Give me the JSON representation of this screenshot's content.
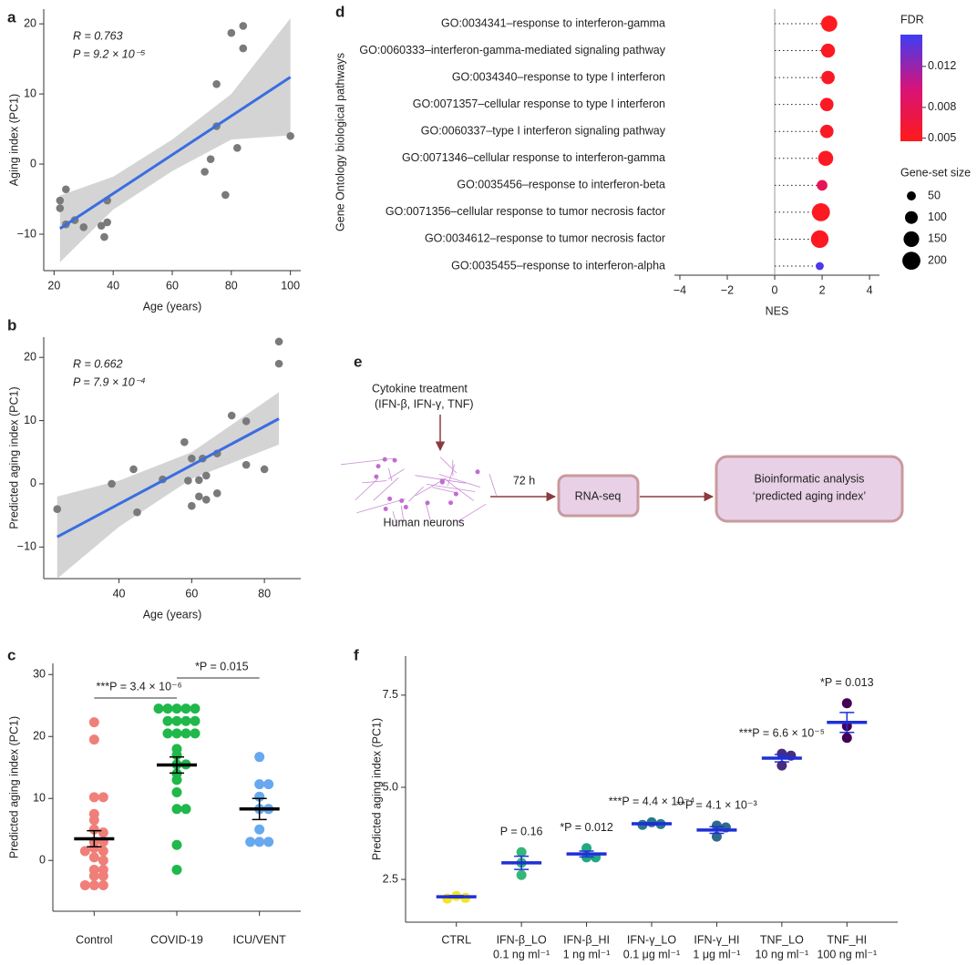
{
  "chart_data": [
    {
      "type": "scatter",
      "panel_label": "a",
      "xlabel": "Age (years)",
      "ylabel": "Aging index (PC1)",
      "annotations": [
        "R = 0.763",
        "P = 9.2 × 10⁻⁵"
      ],
      "x": [
        22,
        22,
        24,
        24,
        27,
        30,
        36,
        37,
        38,
        38,
        71,
        73,
        75,
        75,
        78,
        80,
        82,
        84,
        84,
        100
      ],
      "values": [
        -5.2,
        -6.3,
        -3.6,
        -8.6,
        -8,
        -9,
        -8.8,
        -10.4,
        -8.3,
        -5.2,
        -1.1,
        0.7,
        11.4,
        5.4,
        -4.4,
        18.7,
        2.3,
        19.7,
        16.5,
        4
      ],
      "color": "#7a7a7a",
      "fit_color": "#3a6de0",
      "band_color": "#d4d4d4",
      "fit": {
        "x": [
          22,
          100
        ],
        "y": [
          -9.2,
          12.4
        ]
      },
      "band": {
        "x": [
          22,
          40,
          60,
          80,
          100
        ],
        "lower": [
          -14,
          -6.5,
          -1,
          3.5,
          4.1
        ],
        "upper": [
          -4.5,
          -1.8,
          3.5,
          10,
          20.8
        ]
      },
      "xlim": [
        16.5,
        103.5
      ],
      "ylim": [
        -15.2,
        22.1
      ],
      "xticks": [
        20,
        40,
        60,
        80,
        100
      ],
      "yticks": [
        {
          "value": -10,
          "label": "−10"
        },
        0,
        10,
        20
      ]
    },
    {
      "type": "scatter",
      "panel_label": "b",
      "xlabel": "Age (years)",
      "ylabel": "Predicted aging index (PC1)",
      "annotations": [
        "R = 0.662",
        "P = 7.9 × 10⁻⁴"
      ],
      "x": [
        23,
        38,
        44,
        45,
        52,
        58,
        59,
        60,
        60,
        62,
        62,
        63,
        64,
        64,
        67,
        67,
        71,
        75,
        75,
        80,
        84,
        84
      ],
      "values": [
        -4,
        0,
        2.3,
        -4.5,
        0.7,
        6.6,
        0.5,
        4,
        -3.5,
        0.6,
        -2,
        4,
        -2.5,
        1.3,
        4.8,
        -1.5,
        10.8,
        9.9,
        3,
        2.3,
        22.5,
        19
      ],
      "color": "#7a7a7a",
      "fit_color": "#3a6de0",
      "band_color": "#d4d4d4",
      "fit": {
        "x": [
          23,
          84
        ],
        "y": [
          -8.4,
          10.3
        ]
      },
      "band": {
        "x": [
          23,
          40,
          60,
          84
        ],
        "lower": [
          -15,
          -6.8,
          0.8,
          6.2
        ],
        "upper": [
          -2,
          0.5,
          5,
          14.5
        ]
      },
      "xlim": [
        19.3,
        90
      ],
      "ylim": [
        -15,
        23.2
      ],
      "xticks": [
        40,
        60,
        80
      ],
      "yticks": [
        {
          "value": -10,
          "label": "−10"
        },
        0,
        10,
        20
      ]
    },
    {
      "type": "strip",
      "panel_label": "c",
      "ylabel": "Predicted aging index (PC1)",
      "categories": [
        "Control",
        "COVID-19",
        "ICU/VENT"
      ],
      "colors": [
        "#f07f7a",
        "#1fb84a",
        "#67a8ee"
      ],
      "points": [
        [
          22.3,
          19.5,
          10.2,
          10.2,
          7.5,
          6.5,
          5,
          4.5,
          3,
          3,
          2,
          1.5,
          1.5,
          0.5,
          0,
          -1.5,
          -1.5,
          -2.5,
          -2.5,
          -4,
          -4,
          -4
        ],
        [
          24.5,
          24.5,
          24.5,
          24.5,
          24.5,
          22.5,
          22.5,
          22.5,
          22.5,
          20.5,
          20.5,
          20.5,
          20.5,
          18,
          17,
          15.5,
          15.5,
          14,
          13,
          11,
          8.3,
          8.3,
          2.5,
          -1.5
        ],
        [
          16.7,
          12.3,
          12.3,
          10.3,
          8.3,
          8.3,
          5,
          3,
          3,
          3
        ]
      ],
      "means": [
        3.5,
        15.4,
        8.3
      ],
      "errors": [
        1.3,
        1.3,
        1.7
      ],
      "mean_color": "#000000",
      "annotations": [
        "***P = 3.4 × 10⁻⁶",
        "*P = 0.015"
      ],
      "ylim": [
        -8.2,
        31.8
      ],
      "yticks": [
        0,
        10,
        20,
        30
      ]
    },
    {
      "type": "dot",
      "panel_label": "d",
      "xlabel": "NES",
      "ylabel": "Gene Ontology biological pathways",
      "categories": [
        "GO:0034341–response to interferon-gamma",
        "GO:0060333–interferon-gamma-mediated signaling pathway",
        "GO:0034340–response to type I interferon",
        "GO:0071357–cellular response to type I interferon",
        "GO:0060337–type I interferon signaling pathway",
        "GO:0071346–cellular response to interferon-gamma",
        "GO:0035456–response to interferon-beta",
        "GO:0071356–cellular response to tumor necrosis factor",
        "GO:0034612–response to tumor necrosis factor",
        "GO:0035455–response to interferon-alpha"
      ],
      "values": [
        2.3,
        2.25,
        2.25,
        2.2,
        2.2,
        2.15,
        2.0,
        1.95,
        1.9,
        1.9
      ],
      "fdr": [
        0.005,
        0.0052,
        0.0053,
        0.0053,
        0.0054,
        0.0052,
        0.008,
        0.0051,
        0.0051,
        0.0145
      ],
      "size": [
        160,
        120,
        110,
        110,
        110,
        140,
        70,
        200,
        190,
        40
      ],
      "xlim": [
        -4.23,
        4.42
      ],
      "xticks": [
        {
          "value": -4,
          "label": "−4"
        },
        {
          "value": -2,
          "label": "−2"
        },
        0,
        2,
        4
      ],
      "color_title": "FDR",
      "colormap": [
        "#ff1a1a",
        "#d6137a",
        "#3d3df5"
      ],
      "clim": [
        0.0047,
        0.0151
      ],
      "cticks": [
        0.005,
        0.008,
        0.012
      ],
      "size_title": "Gene-set size",
      "size_legend": [
        50,
        100,
        150,
        200
      ]
    },
    {
      "type": "strip",
      "panel_label": "f",
      "ylabel": "Predicted aging index (PC1)",
      "categories": [
        "CTRL",
        "IFN-β_LO",
        "IFN-β_HI",
        "IFN-γ_LO",
        "IFN-γ_HI",
        "TNF_LO",
        "TNF_HI"
      ],
      "doses": [
        null,
        "0.1 ng ml⁻¹",
        "1 ng ml⁻¹",
        "0.1 μg ml⁻¹",
        "1 μg ml⁻¹",
        "10 ng ml⁻¹",
        "100 ng ml⁻¹"
      ],
      "colors": [
        "#f2e51d",
        "#35b779",
        "#22a884",
        "#2a788e",
        "#31688e",
        "#472d7b",
        "#440154"
      ],
      "points": [
        [
          2.05,
          2.0,
          1.98
        ],
        [
          3.24,
          2.95,
          2.62
        ],
        [
          3.35,
          3.1,
          3.1
        ],
        [
          4.05,
          4.0,
          3.98
        ],
        [
          3.96,
          3.91,
          3.66
        ],
        [
          5.91,
          5.86,
          5.59
        ],
        [
          7.28,
          6.66,
          6.34
        ]
      ],
      "means": [
        2.03,
        2.95,
        3.19,
        4.01,
        3.84,
        5.79,
        6.76
      ],
      "errors": [
        0.03,
        0.18,
        0.08,
        0.03,
        0.09,
        0.1,
        0.27
      ],
      "mean_color": "#1f2fd6",
      "p_labels": [
        null,
        "P = 0.16",
        "*P = 0.012",
        "***P = 4.4 × 10⁻⁴",
        "**P = 4.1 × 10⁻³",
        "***P = 6.6 × 10⁻⁵",
        "*P = 0.013"
      ],
      "ylim": [
        1.34,
        8.56
      ],
      "yticks": [
        2.5,
        {
          "value": 5,
          "label": "5.0"
        },
        7.5
      ]
    }
  ],
  "diagram": {
    "panel_label": "e",
    "treatment": "Cytokine treatment",
    "cytokines": "(IFN-β, IFN-γ, TNF)",
    "cells": "Human neurons",
    "duration": "72 h",
    "step1": "RNA-seq",
    "step2_line1": "Bioinformatic analysis",
    "step2_line2": "‘predicted aging index’"
  }
}
